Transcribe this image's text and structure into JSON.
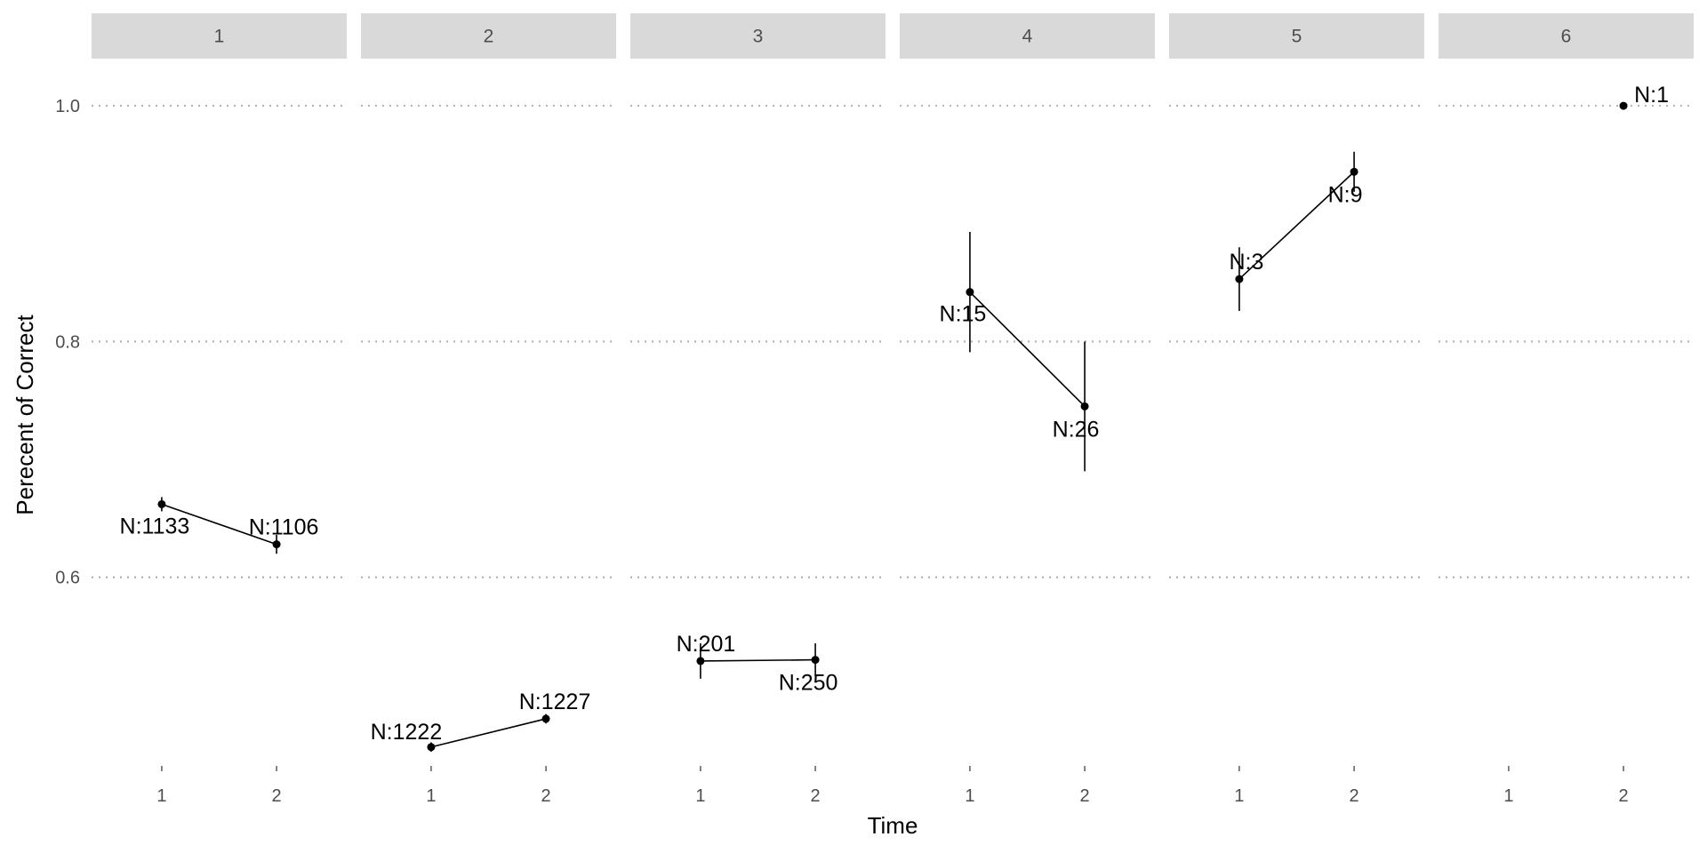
{
  "chart_data": {
    "type": "line",
    "xlabel": "Time",
    "ylabel": "Perecent of Correct",
    "yticks": [
      0.6,
      0.8,
      1.0
    ],
    "ytick_labels": [
      "0.6",
      "0.8",
      "1.0"
    ],
    "ylim": [
      0.44,
      1.04
    ],
    "x_categories": [
      "1",
      "2"
    ],
    "grid": "major y dotted",
    "error_bars": true,
    "facets": [
      {
        "strip": "1",
        "points": [
          {
            "x": 1,
            "y": 0.662,
            "lo": 0.656,
            "hi": 0.668,
            "label": "N:1133"
          },
          {
            "x": 2,
            "y": 0.628,
            "lo": 0.62,
            "hi": 0.636,
            "label": "N:1106"
          }
        ]
      },
      {
        "strip": "2",
        "points": [
          {
            "x": 1,
            "y": 0.456,
            "lo": 0.452,
            "hi": 0.46,
            "label": "N:1222"
          },
          {
            "x": 2,
            "y": 0.48,
            "lo": 0.476,
            "hi": 0.484,
            "label": "N:1227"
          }
        ]
      },
      {
        "strip": "3",
        "points": [
          {
            "x": 1,
            "y": 0.529,
            "lo": 0.514,
            "hi": 0.544,
            "label": "N:201"
          },
          {
            "x": 2,
            "y": 0.53,
            "lo": 0.516,
            "hi": 0.544,
            "label": "N:250"
          }
        ]
      },
      {
        "strip": "4",
        "points": [
          {
            "x": 1,
            "y": 0.842,
            "lo": 0.791,
            "hi": 0.893,
            "label": "N:15"
          },
          {
            "x": 2,
            "y": 0.745,
            "lo": 0.69,
            "hi": 0.8,
            "label": "N:26"
          }
        ]
      },
      {
        "strip": "5",
        "points": [
          {
            "x": 1,
            "y": 0.853,
            "lo": 0.826,
            "hi": 0.88,
            "label": "N:3"
          },
          {
            "x": 2,
            "y": 0.944,
            "lo": 0.927,
            "hi": 0.961,
            "label": "N:9"
          }
        ]
      },
      {
        "strip": "6",
        "points": [
          {
            "x": 2,
            "y": 1.0,
            "lo": 1.0,
            "hi": 1.0,
            "label": "N:1"
          }
        ]
      }
    ]
  }
}
